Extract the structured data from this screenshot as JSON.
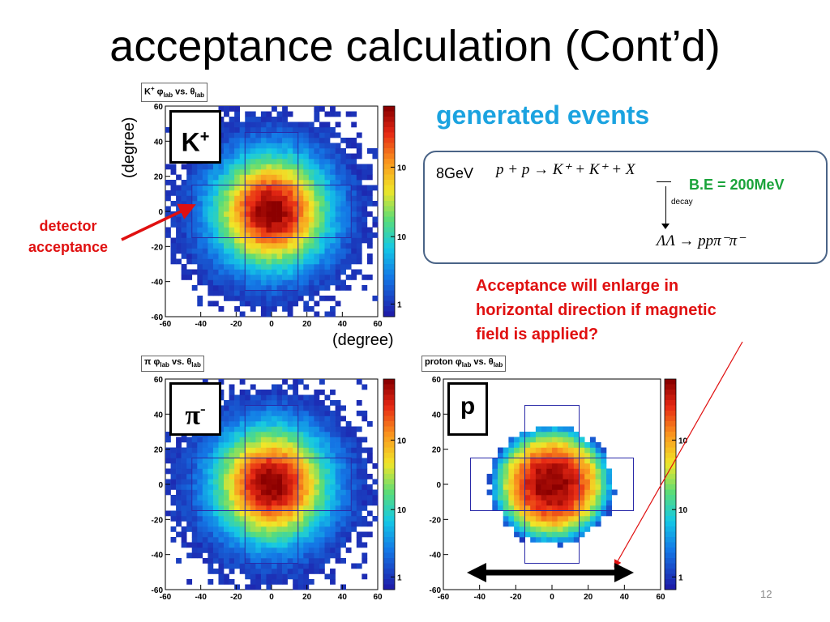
{
  "slide": {
    "title": "acceptance calculation (Cont’d)",
    "page_number": "12"
  },
  "labels": {
    "ylabel": "(degree)",
    "xlabel": "(degree)",
    "detector_acceptance_1": "detector",
    "detector_acceptance_2": "acceptance",
    "generated_events": "generated events",
    "note_line1": "Acceptance will enlarge in",
    "note_line2": "horizontal direction if magnetic",
    "note_line3": "field is applied?"
  },
  "reaction": {
    "energy": "8GeV",
    "equation": "p + p → K⁺ + K⁺ + X",
    "binding_energy": "B.E = 200MeV",
    "decay_label": "decay",
    "products": "ΛΛ → ppπ⁻π⁻"
  },
  "colors": {
    "title_blue": "#1ba3e0",
    "annotation_red": "#e01010",
    "be_green": "#1aa33a",
    "box_border": "#4a6487",
    "acceptance_box": "#2a2aa8"
  },
  "chart_data": [
    {
      "type": "heatmap",
      "title_main": "K",
      "title_sup": "+",
      "title_rest": " φ",
      "title_sub1": "lab",
      "title_mid": " vs. θ",
      "title_sub2": "lab",
      "particle": "K",
      "particle_sup": "+",
      "xlim": [
        -60,
        60
      ],
      "ylim": [
        -60,
        60
      ],
      "xticks": [
        "-60",
        "-40",
        "-20",
        "0",
        "20",
        "40",
        "60"
      ],
      "yticks": [
        "60",
        "40",
        "20",
        "0",
        "-20",
        "-40",
        "-60"
      ],
      "colorbar_ticks": [
        "10",
        "10",
        "1"
      ],
      "spread_deg": 30,
      "acceptance_regions": [
        {
          "x": [
            -45,
            45
          ],
          "y": [
            -15,
            15
          ]
        },
        {
          "x": [
            -15,
            15
          ],
          "y": [
            -45,
            45
          ]
        }
      ]
    },
    {
      "type": "heatmap",
      "title_main": "π",
      "title_sup": "",
      "title_rest": " φ",
      "title_sub1": "lab",
      "title_mid": " vs. θ",
      "title_sub2": "lab",
      "particle": "π",
      "particle_sup": "-",
      "xlim": [
        -60,
        60
      ],
      "ylim": [
        -60,
        60
      ],
      "xticks": [
        "-60",
        "-40",
        "-20",
        "0",
        "20",
        "40",
        "60"
      ],
      "yticks": [
        "60",
        "40",
        "20",
        "0",
        "-20",
        "-40",
        "-60"
      ],
      "colorbar_ticks": [
        "10",
        "10",
        "1"
      ],
      "spread_deg": 30,
      "acceptance_regions": [
        {
          "x": [
            -45,
            45
          ],
          "y": [
            -15,
            15
          ]
        },
        {
          "x": [
            -15,
            15
          ],
          "y": [
            -45,
            45
          ]
        }
      ]
    },
    {
      "type": "heatmap",
      "title_main": "proton",
      "title_sup": "",
      "title_rest": " φ",
      "title_sub1": "lab",
      "title_mid": " vs. θ",
      "title_sub2": "lab",
      "particle": "p",
      "particle_sup": "",
      "xlim": [
        -60,
        60
      ],
      "ylim": [
        -60,
        60
      ],
      "xticks": [
        "-60",
        "-40",
        "-20",
        "0",
        "20",
        "40",
        "60"
      ],
      "yticks": [
        "60",
        "40",
        "20",
        "0",
        "-20",
        "-40",
        "-60"
      ],
      "colorbar_ticks": [
        "10",
        "10",
        "1"
      ],
      "spread_deg": 24,
      "acceptance_regions": [
        {
          "x": [
            -45,
            45
          ],
          "y": [
            -15,
            15
          ]
        },
        {
          "x": [
            -15,
            15
          ],
          "y": [
            -45,
            45
          ]
        }
      ]
    }
  ]
}
